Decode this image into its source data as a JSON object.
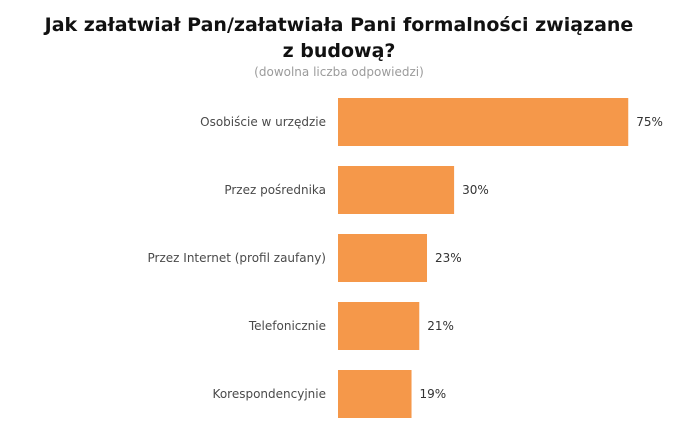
{
  "chart_data": {
    "type": "bar",
    "orientation": "horizontal",
    "title": "Jak załatwiał Pan/załatwiała Pani formalności związane z budową?",
    "subtitle": "(dowolna liczba odpowiedzi)",
    "categories": [
      "Osobiście w urzędzie",
      "Przez pośrednika",
      "Przez Internet (profil zaufany)",
      "Telefonicznie",
      "Korespondencyjnie"
    ],
    "values": [
      75,
      30,
      23,
      21,
      19
    ],
    "value_labels": [
      "75%",
      "30%",
      "23%",
      "21%",
      "19%"
    ],
    "unit": "%",
    "xlim": [
      0,
      100
    ],
    "grid": false,
    "legend": "none",
    "bar_color": "#f5984a"
  }
}
